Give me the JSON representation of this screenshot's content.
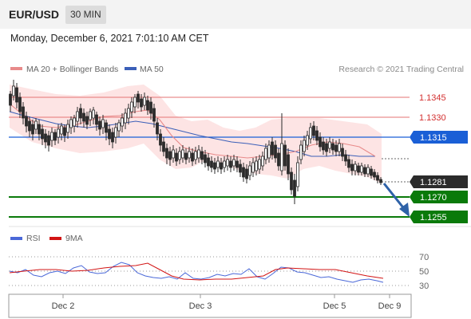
{
  "header": {
    "symbol": "EUR/USD",
    "timeframe": "30 MIN",
    "datetime": "Monday, December 6, 2021 7:01:10 AM CET"
  },
  "legend": {
    "ma20_label": "MA 20 + Bollinger Bands",
    "ma50_label": "MA 50",
    "credit": "Research © 2021 Trading Central",
    "rsi_label": "RSI",
    "ma9_label": "9MA"
  },
  "colors": {
    "bollinger_fill": "#fde4e4",
    "ma20": "#e88a8a",
    "ma50": "#3b5fb8",
    "resistance": "#d32f2f",
    "pivot": "#1a5fd6",
    "support": "#0a7a0a",
    "last_price_tag": "#2b2b2b",
    "arrow": "#2f62a8",
    "rsi": "#4a68d8",
    "rsi_ma": "#d21414",
    "bull_candle": "#ffffff",
    "bear_candle": "#2b2b2b"
  },
  "levels": {
    "r2": "1.1345",
    "r1": "1.1330",
    "pivot": "1.1315",
    "last": "1.1281",
    "s1": "1.1270",
    "s2": "1.1255"
  },
  "rsi_ticks": [
    "70",
    "50",
    "30"
  ],
  "x_ticks": [
    "Dec 2",
    "Dec 3",
    "Dec 5",
    "Dec 9"
  ],
  "chart_data": {
    "type": "candlestick",
    "instrument": "EUR/USD",
    "interval": "30 MIN",
    "y_axis_levels": [
      1.1345,
      1.133,
      1.1315,
      1.1281,
      1.127,
      1.1255
    ],
    "x_categories": [
      "Dec 2",
      "Dec 3",
      "Dec 5",
      "Dec 9"
    ],
    "horizontal_levels": [
      {
        "label": "1.1345",
        "value": 1.1345,
        "kind": "resistance"
      },
      {
        "label": "1.1330",
        "value": 1.133,
        "kind": "resistance"
      },
      {
        "label": "1.1315",
        "value": 1.1315,
        "kind": "pivot"
      },
      {
        "label": "1.1281",
        "value": 1.1281,
        "kind": "last"
      },
      {
        "label": "1.1270",
        "value": 1.127,
        "kind": "support"
      },
      {
        "label": "1.1255",
        "value": 1.1255,
        "kind": "support"
      }
    ],
    "close_series": [
      1.1337,
      1.133,
      1.1322,
      1.1318,
      1.132,
      1.1312,
      1.131,
      1.1314,
      1.1316,
      1.1322,
      1.1326,
      1.132,
      1.1316,
      1.1312,
      1.1318,
      1.1323,
      1.1332,
      1.134,
      1.1343,
      1.1336,
      1.132,
      1.1311,
      1.1303,
      1.13,
      1.1302,
      1.1304,
      1.13,
      1.1296,
      1.1292,
      1.1294,
      1.13,
      1.1306,
      1.1296,
      1.1284,
      1.1277,
      1.129,
      1.1308,
      1.1318,
      1.1324,
      1.1318,
      1.131,
      1.1309,
      1.1302,
      1.1294,
      1.1288,
      1.1289,
      1.1287,
      1.1281
    ],
    "ma50_series": [
      1.133,
      1.1325,
      1.1322,
      1.132,
      1.1318,
      1.1318,
      1.1316,
      1.1314,
      1.1312,
      1.1311,
      1.131,
      1.131,
      1.1311,
      1.1313,
      1.1315,
      1.1316,
      1.1317,
      1.1318,
      1.1318,
      1.1317,
      1.1315,
      1.1312,
      1.131,
      1.1309,
      1.1308,
      1.1307,
      1.1306,
      1.1306,
      1.1305,
      1.1303,
      1.1302,
      1.1301,
      1.13,
      1.1298,
      1.1297,
      1.1297,
      1.1298,
      1.1299,
      1.1299,
      1.1299
    ],
    "ma20_series": [
      1.1325,
      1.1318,
      1.1313,
      1.1312,
      1.1313,
      1.1316,
      1.1319,
      1.132,
      1.132,
      1.1321,
      1.1326,
      1.133,
      1.1332,
      1.133,
      1.1322,
      1.1314,
      1.1307,
      1.1304,
      1.1302,
      1.13,
      1.1298,
      1.1298,
      1.1296,
      1.1296,
      1.1297,
      1.1297,
      1.1298,
      1.13,
      1.1302,
      1.1302,
      1.13,
      1.1302,
      1.1304,
      1.1305,
      1.1304,
      1.13,
      1.1297
    ],
    "rsi": {
      "levels": [
        70,
        50,
        30
      ],
      "rsi_series": [
        50,
        47,
        52,
        44,
        41,
        48,
        50,
        47,
        56,
        60,
        49,
        46,
        47,
        59,
        66,
        61,
        47,
        42,
        39,
        38,
        41,
        37,
        47,
        39,
        38,
        40,
        45,
        43,
        46,
        45,
        54,
        41,
        38,
        47,
        57,
        55,
        49,
        48,
        44,
        40,
        41,
        38,
        35,
        32
      ],
      "ma9_series": [
        48,
        50,
        52,
        52,
        51,
        52,
        55,
        57,
        56,
        57,
        63,
        60,
        53,
        47,
        42,
        40,
        39,
        39,
        41,
        41,
        41,
        42,
        43,
        43,
        44,
        46,
        46,
        47,
        53,
        53,
        53,
        52,
        49,
        48,
        44,
        42,
        40,
        38,
        37
      ]
    }
  }
}
